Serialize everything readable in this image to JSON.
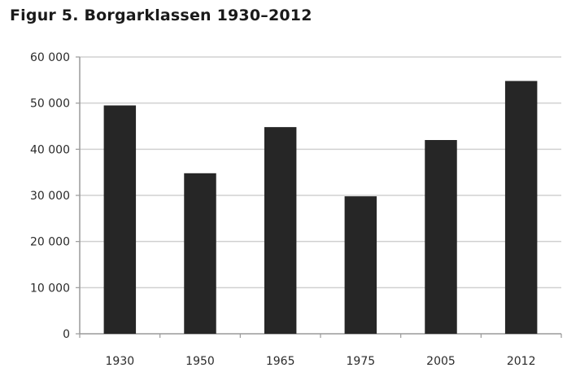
{
  "chart_data": {
    "type": "bar",
    "title": "Figur 5. Borgarklassen 1930–2012",
    "xlabel": "",
    "ylabel": "",
    "categories": [
      "1930",
      "1950",
      "1965",
      "1975",
      "2005",
      "2012"
    ],
    "values": [
      49500,
      34800,
      44800,
      29800,
      42000,
      54800
    ],
    "ylim": [
      0,
      60000
    ],
    "yticks": [
      0,
      10000,
      20000,
      30000,
      40000,
      50000,
      60000
    ],
    "ytick_labels": [
      "0",
      "10 000",
      "20 000",
      "30 000",
      "40 000",
      "50 000",
      "60 000"
    ],
    "grid": true,
    "legend": "none",
    "bar_color": "#262626",
    "grid_color": "#d0d0d0"
  }
}
